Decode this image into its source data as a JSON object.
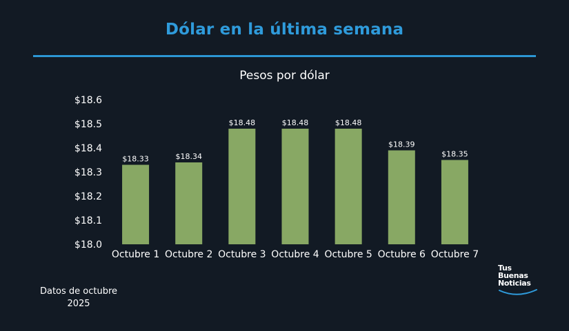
{
  "header": {
    "title": "Dólar en la última semana"
  },
  "chart_data": {
    "type": "bar",
    "title": "Pesos por dólar",
    "categories": [
      "Octubre 1",
      "Octubre 2",
      "Octubre 3",
      "Octubre 4",
      "Octubre 5",
      "Octubre 6",
      "Octubre 7"
    ],
    "values": [
      18.33,
      18.34,
      18.48,
      18.48,
      18.48,
      18.39,
      18.35
    ],
    "data_labels": [
      "$18.33",
      "$18.34",
      "$18.48",
      "$18.48",
      "$18.48",
      "$18.39",
      "$18.35"
    ],
    "yticks": [
      18.0,
      18.1,
      18.2,
      18.3,
      18.4,
      18.5,
      18.6
    ],
    "ytick_labels": [
      "$18.0",
      "$18.1",
      "$18.2",
      "$18.3",
      "$18.4",
      "$18.5",
      "$18.6"
    ],
    "ylim": [
      18.0,
      18.6
    ],
    "grid": false,
    "bar_color": "#88a864"
  },
  "footer": {
    "note": "Datos de octubre 2025",
    "brand_lines": [
      "Tus",
      "Buenas",
      "Noticias"
    ]
  },
  "colors": {
    "background": "#121a24",
    "accent": "#2f9bdb"
  }
}
